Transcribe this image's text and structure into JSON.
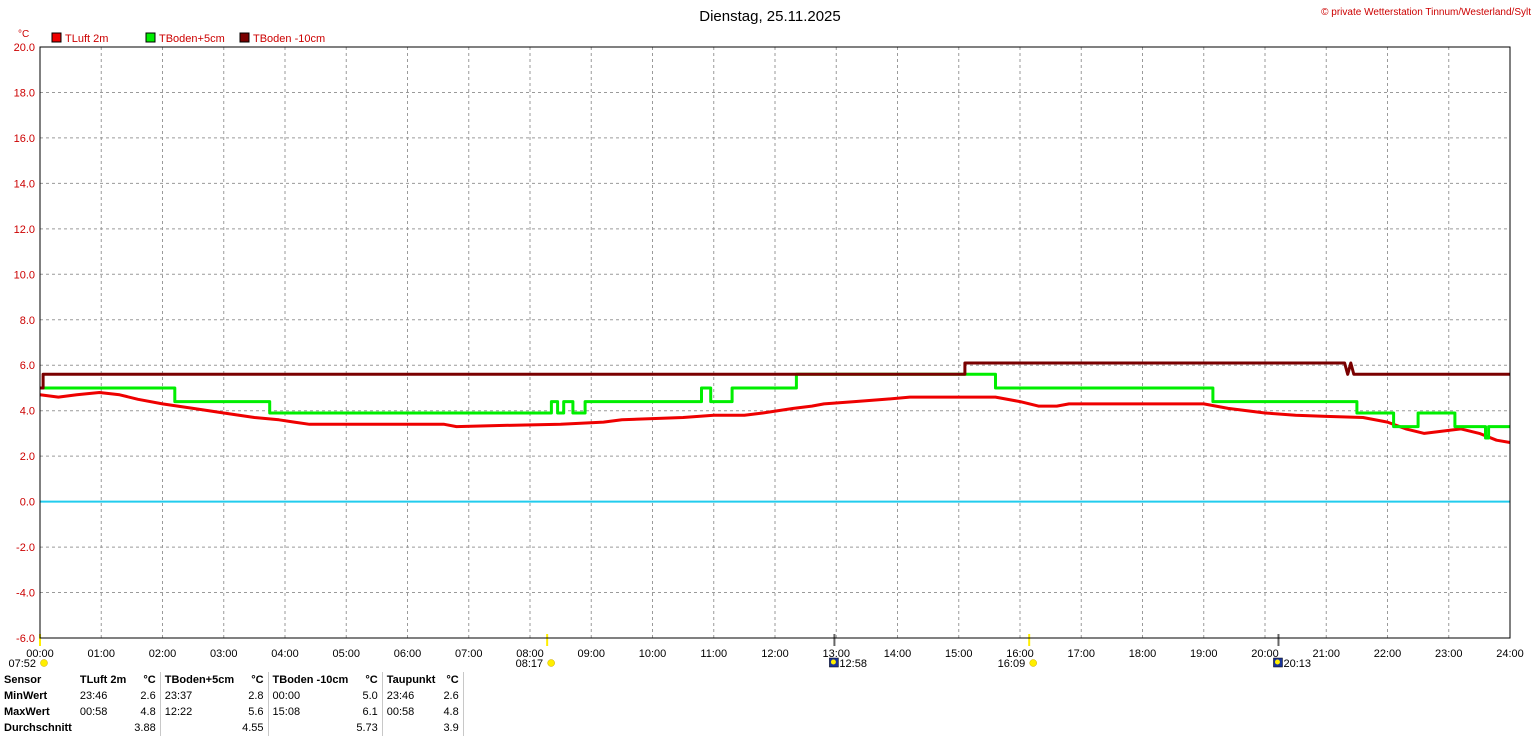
{
  "header": {
    "title": "Dienstag, 25.11.2025",
    "copyright": "© private Wetterstation Tinnum/Westerland/Sylt",
    "y_unit": "°C"
  },
  "chart_data": {
    "type": "line",
    "title": "Dienstag, 25.11.2025",
    "ylabel": "°C",
    "ylim": [
      -6.0,
      20.0
    ],
    "xlim": [
      0,
      24
    ],
    "y_ticks": [
      "20.0",
      "18.0",
      "16.0",
      "14.0",
      "12.0",
      "10.0",
      "8.0",
      "6.0",
      "4.0",
      "2.0",
      "0.0",
      "-2.0",
      "-4.0",
      "-6.0"
    ],
    "x_ticks": [
      "00:00",
      "01:00",
      "02:00",
      "03:00",
      "04:00",
      "05:00",
      "06:00",
      "07:00",
      "08:00",
      "09:00",
      "10:00",
      "11:00",
      "12:00",
      "13:00",
      "14:00",
      "15:00",
      "16:00",
      "17:00",
      "18:00",
      "19:00",
      "20:00",
      "21:00",
      "22:00",
      "23:00",
      "24:00"
    ],
    "grid": true,
    "legend_position": "top-left",
    "zero_line": 0.0,
    "series": [
      {
        "name": "TLuft 2m",
        "color": "#ee0000",
        "points": [
          [
            0,
            4.7
          ],
          [
            0.3,
            4.6
          ],
          [
            0.6,
            4.7
          ],
          [
            0.97,
            4.8
          ],
          [
            1.3,
            4.7
          ],
          [
            1.6,
            4.5
          ],
          [
            2.0,
            4.3
          ],
          [
            2.5,
            4.1
          ],
          [
            3.0,
            3.9
          ],
          [
            3.5,
            3.7
          ],
          [
            3.9,
            3.6
          ],
          [
            4.15,
            3.5
          ],
          [
            4.4,
            3.4
          ],
          [
            5.0,
            3.4
          ],
          [
            6.0,
            3.4
          ],
          [
            6.6,
            3.4
          ],
          [
            6.8,
            3.3
          ],
          [
            7.5,
            3.35
          ],
          [
            8.5,
            3.4
          ],
          [
            9.2,
            3.5
          ],
          [
            9.5,
            3.6
          ],
          [
            10.5,
            3.7
          ],
          [
            11.0,
            3.8
          ],
          [
            11.5,
            3.8
          ],
          [
            11.8,
            3.9
          ],
          [
            12.3,
            4.1
          ],
          [
            12.6,
            4.2
          ],
          [
            12.8,
            4.3
          ],
          [
            13.3,
            4.4
          ],
          [
            13.8,
            4.5
          ],
          [
            14.2,
            4.6
          ],
          [
            15.0,
            4.6
          ],
          [
            15.6,
            4.6
          ],
          [
            16.0,
            4.4
          ],
          [
            16.3,
            4.2
          ],
          [
            16.6,
            4.2
          ],
          [
            16.8,
            4.3
          ],
          [
            18.5,
            4.3
          ],
          [
            19.0,
            4.3
          ],
          [
            19.4,
            4.1
          ],
          [
            20.0,
            3.9
          ],
          [
            20.5,
            3.8
          ],
          [
            21.0,
            3.75
          ],
          [
            21.6,
            3.7
          ],
          [
            22.0,
            3.5
          ],
          [
            22.3,
            3.2
          ],
          [
            22.6,
            3.0
          ],
          [
            22.9,
            3.1
          ],
          [
            23.2,
            3.2
          ],
          [
            23.5,
            3.0
          ],
          [
            23.78,
            2.7
          ],
          [
            24.0,
            2.6
          ]
        ]
      },
      {
        "name": "TBoden+5cm",
        "color": "#00ee00",
        "points": [
          [
            0,
            5.0
          ],
          [
            2.2,
            5.0
          ],
          [
            2.2,
            4.4
          ],
          [
            3.75,
            4.4
          ],
          [
            3.75,
            3.9
          ],
          [
            8.35,
            3.9
          ],
          [
            8.35,
            4.4
          ],
          [
            8.45,
            4.4
          ],
          [
            8.45,
            3.9
          ],
          [
            8.55,
            3.9
          ],
          [
            8.55,
            4.4
          ],
          [
            8.7,
            4.4
          ],
          [
            8.7,
            3.9
          ],
          [
            8.9,
            3.9
          ],
          [
            8.9,
            4.4
          ],
          [
            10.8,
            4.4
          ],
          [
            10.8,
            5.0
          ],
          [
            10.95,
            5.0
          ],
          [
            10.95,
            4.4
          ],
          [
            11.3,
            4.4
          ],
          [
            11.3,
            5.0
          ],
          [
            12.35,
            5.0
          ],
          [
            12.35,
            5.6
          ],
          [
            15.6,
            5.6
          ],
          [
            15.6,
            5.0
          ],
          [
            19.15,
            5.0
          ],
          [
            19.15,
            4.4
          ],
          [
            21.5,
            4.4
          ],
          [
            21.5,
            3.9
          ],
          [
            22.1,
            3.9
          ],
          [
            22.1,
            3.3
          ],
          [
            22.5,
            3.3
          ],
          [
            22.5,
            3.9
          ],
          [
            23.1,
            3.9
          ],
          [
            23.1,
            3.3
          ],
          [
            23.6,
            3.3
          ],
          [
            23.6,
            2.8
          ],
          [
            23.65,
            2.8
          ],
          [
            23.65,
            3.3
          ],
          [
            24,
            3.3
          ]
        ]
      },
      {
        "name": "TBoden -10cm",
        "color": "#7a0000",
        "points": [
          [
            0,
            5.0
          ],
          [
            0.05,
            5.0
          ],
          [
            0.05,
            5.6
          ],
          [
            15.1,
            5.6
          ],
          [
            15.1,
            6.1
          ],
          [
            21.3,
            6.1
          ],
          [
            21.35,
            5.6
          ],
          [
            21.4,
            6.1
          ],
          [
            21.45,
            5.6
          ],
          [
            24,
            5.6
          ]
        ]
      }
    ]
  },
  "events": [
    {
      "label": "07:52",
      "x": 0.0,
      "icon": "sunrise-icon"
    },
    {
      "label": "08:17",
      "x": 8.28,
      "icon": "sun-icon"
    },
    {
      "label": "12:58",
      "x": 12.97,
      "icon": "moon-icon"
    },
    {
      "label": "16:09",
      "x": 16.15,
      "icon": "sunset-icon"
    },
    {
      "label": "20:13",
      "x": 20.22,
      "icon": "moonset-icon"
    }
  ],
  "stats": {
    "header": [
      "Sensor",
      "TLuft 2m",
      "°C",
      "TBoden+5cm",
      "°C",
      "TBoden -10cm",
      "°C",
      "Taupunkt",
      "°C"
    ],
    "rows": [
      [
        "MinWert",
        "23:46",
        "2.6",
        "23:37",
        "2.8",
        "00:00",
        "5.0",
        "23:46",
        "2.6"
      ],
      [
        "MaxWert",
        "00:58",
        "4.8",
        "12:22",
        "5.6",
        "15:08",
        "6.1",
        "00:58",
        "4.8"
      ],
      [
        "Durchschnitt",
        "",
        "3.88",
        "",
        "4.55",
        "",
        "5.73",
        "",
        "3.9"
      ]
    ]
  }
}
